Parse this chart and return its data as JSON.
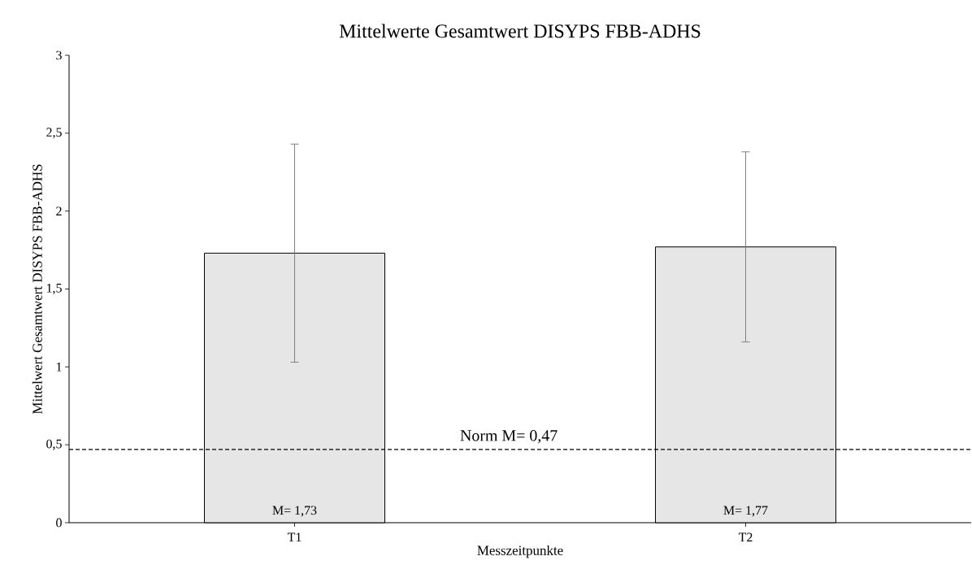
{
  "chart_data": {
    "type": "bar",
    "title": "Mittelwerte Gesamtwert DISYPS FBB-ADHS",
    "xlabel": "Messzeitpunkte",
    "ylabel": "Mittelwert Gesamtwert DISYPS FBB-ADHS",
    "categories": [
      "T1",
      "T2"
    ],
    "values": [
      1.73,
      1.77
    ],
    "color": "#e6e6e6",
    "errors": [
      0.7,
      0.61
    ],
    "value_labels": [
      "M= 1,73",
      "M= 1,77"
    ],
    "ylim": [
      0,
      3
    ],
    "yticks": [
      0,
      {
        "value": 0.5,
        "label": "0,5"
      },
      1,
      {
        "value": 1.5,
        "label": "1,5"
      },
      2,
      {
        "value": 2.5,
        "label": "2,5"
      },
      3
    ],
    "ref_lines": [
      {
        "axis": "y",
        "value": 0.47,
        "label": "Norm M= 0,47",
        "color": "#000000",
        "line_style": "dashed"
      }
    ]
  }
}
